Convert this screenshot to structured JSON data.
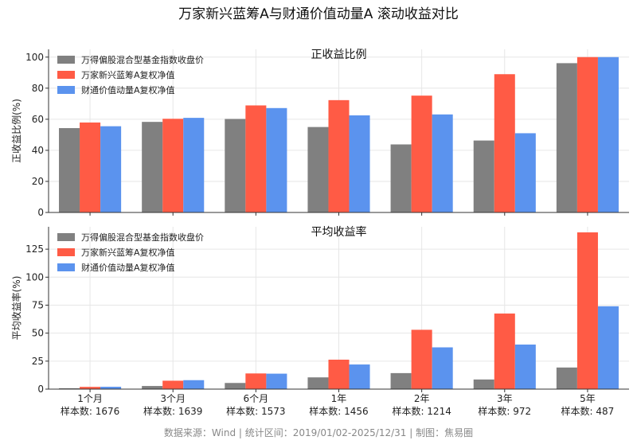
{
  "title": "万家新兴蓝筹A与财通价值动量A 滚动收益对比",
  "footer": "数据来源：Wind | 统计区间：2019/01/02-2025/12/31 | 制图：焦易圈",
  "colors": {
    "index": "#808080",
    "fundA": "#FF5B45",
    "fundB": "#5B93EE"
  },
  "chart_data": [
    {
      "type": "bar",
      "title": "正收益比例",
      "ylabel": "正收益比例(%)",
      "ylim": [
        0,
        105
      ],
      "yticks": [
        0,
        20,
        40,
        60,
        80,
        100
      ],
      "grid": true,
      "legend": "top-left",
      "categories": [
        "1个月",
        "3个月",
        "6个月",
        "1年",
        "2年",
        "3年",
        "5年"
      ],
      "series": [
        {
          "name": "万得偏股混合型基金指数收盘价",
          "values": [
            54.3,
            58.3,
            60.2,
            55.0,
            43.8,
            46.3,
            96.1
          ]
        },
        {
          "name": "万家新兴蓝筹A复权净值",
          "values": [
            57.9,
            60.3,
            68.9,
            72.3,
            75.2,
            89.0,
            100
          ]
        },
        {
          "name": "财通价值动量A复权净值",
          "values": [
            55.5,
            60.9,
            67.2,
            62.5,
            63.1,
            51.0,
            100
          ]
        }
      ]
    },
    {
      "type": "bar",
      "title": "平均收益率",
      "ylabel": "平均收益率(%)",
      "ylim": [
        0,
        145
      ],
      "yticks": [
        0,
        25,
        50,
        75,
        100,
        125
      ],
      "grid": true,
      "legend": "top-left",
      "categories": [
        "1个月",
        "3个月",
        "6个月",
        "1年",
        "2年",
        "3年",
        "5年"
      ],
      "sample_labels": [
        "样本数: 1676",
        "样本数: 1639",
        "样本数: 1573",
        "样本数: 1456",
        "样本数: 1214",
        "样本数: 972",
        "样本数: 487"
      ],
      "series": [
        {
          "name": "万得偏股混合型基金指数收盘价",
          "values": [
            0.8,
            2.8,
            5.5,
            10.5,
            14.3,
            8.6,
            19.3
          ]
        },
        {
          "name": "万家新兴蓝筹A复权净值",
          "values": [
            2.0,
            7.5,
            14.0,
            26.3,
            53.0,
            67.5,
            140.0
          ]
        },
        {
          "name": "财通价值动量A复权净值",
          "values": [
            2.1,
            8.0,
            13.8,
            22.0,
            37.3,
            39.8,
            74.0
          ]
        }
      ]
    }
  ]
}
